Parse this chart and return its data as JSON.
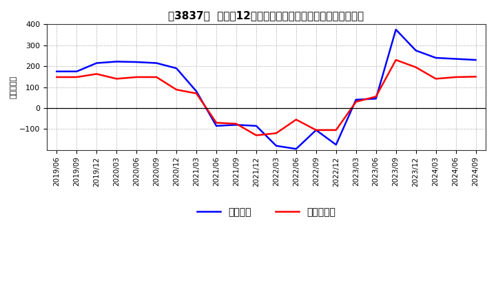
{
  "title": "［3837］  利益の12か月移動合計の対前年同期増減額の推移",
  "ylabel": "（百万円）",
  "xlabels": [
    "2019/06",
    "2019/09",
    "2019/12",
    "2020/03",
    "2020/06",
    "2020/09",
    "2020/12",
    "2021/03",
    "2021/06",
    "2021/09",
    "2021/12",
    "2022/03",
    "2022/06",
    "2022/09",
    "2022/12",
    "2023/03",
    "2023/06",
    "2023/09",
    "2023/12",
    "2024/03",
    "2024/06",
    "2024/09"
  ],
  "keijo_rieki": [
    175,
    175,
    215,
    222,
    220,
    215,
    190,
    80,
    -85,
    -80,
    -85,
    -180,
    -195,
    -105,
    -175,
    40,
    45,
    375,
    275,
    240,
    235,
    230
  ],
  "toki_jun_rieki": [
    148,
    148,
    163,
    140,
    148,
    148,
    88,
    70,
    -70,
    -75,
    -130,
    -120,
    -55,
    -105,
    -105,
    30,
    55,
    230,
    195,
    140,
    148,
    150
  ],
  "ylim": [
    -200,
    400
  ],
  "yticks": [
    -100,
    0,
    100,
    200,
    300,
    400
  ],
  "legend_keijo": "経常利益",
  "legend_toki": "当期純利益",
  "line_color_keijo": "#0000FF",
  "line_color_toki": "#FF0000",
  "background_color": "#FFFFFF",
  "grid_color": "#AAAAAA",
  "title_fontsize": 11,
  "axis_fontsize": 8
}
